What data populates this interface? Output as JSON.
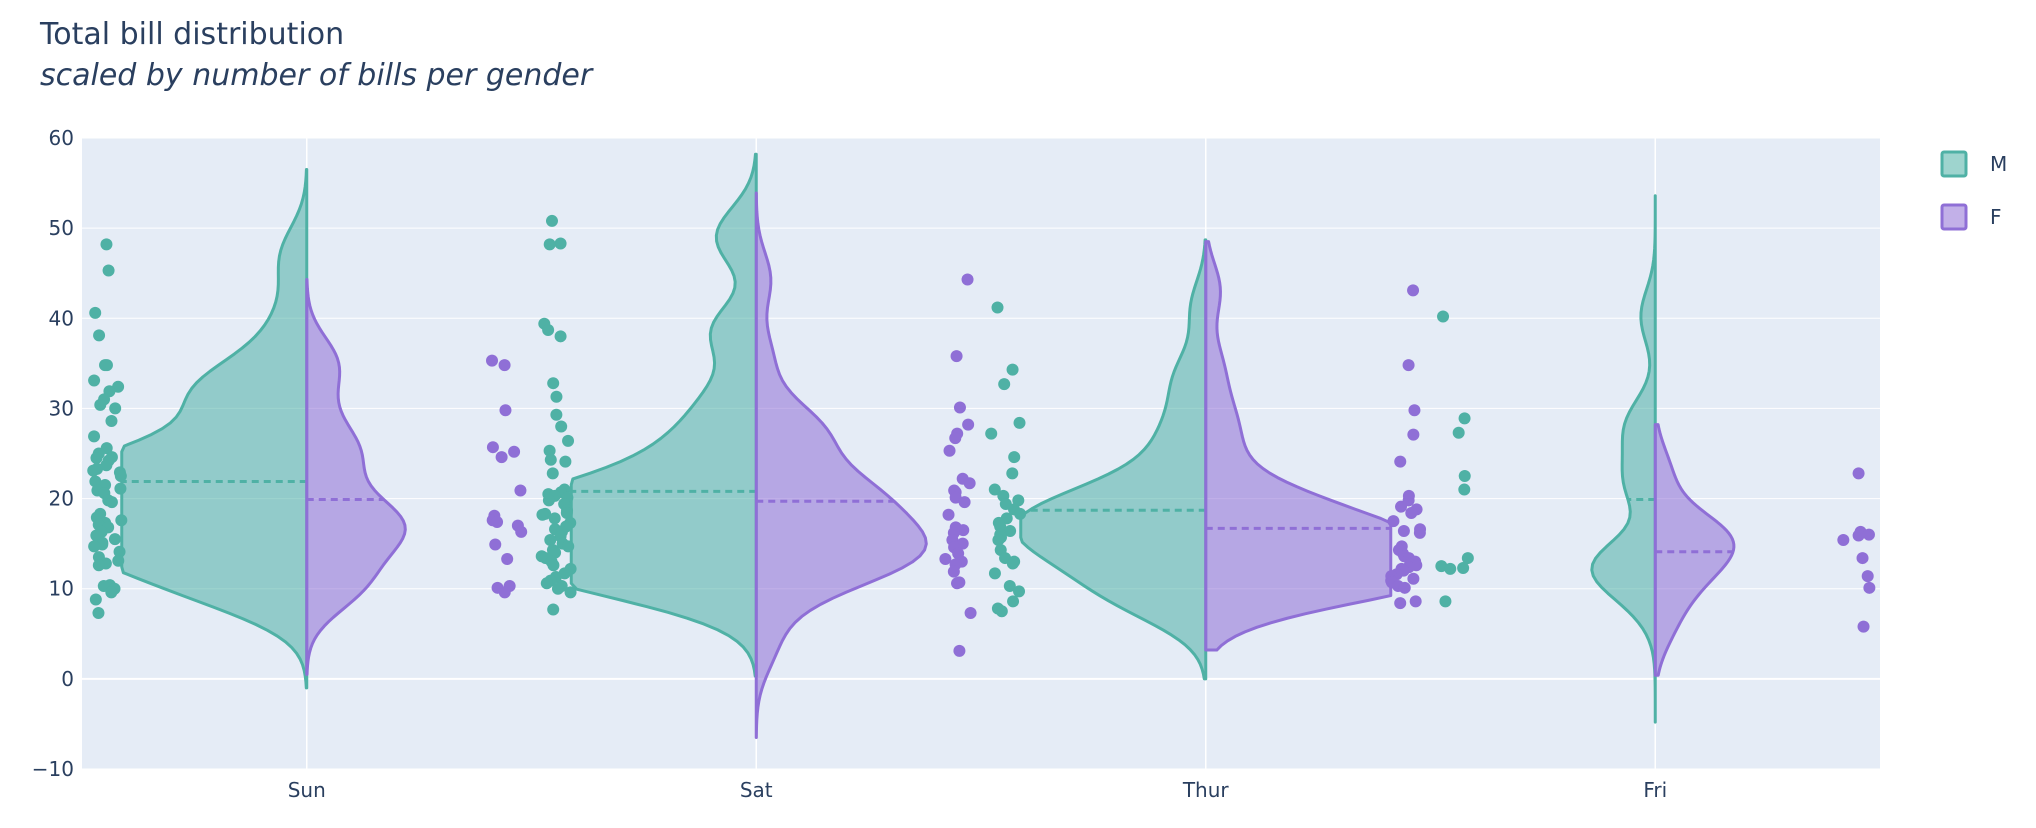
{
  "title": "Total bill distribution",
  "subtitle": "scaled by number of bills per gender",
  "colors": {
    "M": "#4fb1a5",
    "F": "#8f6fd6",
    "plot_bg": "#e5ecf6",
    "grid": "#ffffff",
    "text": "#2a3f5f"
  },
  "chart_data": {
    "type": "violin",
    "categories": [
      "Sun",
      "Sat",
      "Thur",
      "Fri"
    ],
    "ylim": [
      -10,
      60
    ],
    "yticks": [
      -10,
      0,
      10,
      20,
      30,
      40,
      50,
      60
    ],
    "grid": true,
    "legend_position": "top-right",
    "series": [
      {
        "name": "M",
        "side": "negative",
        "violins": [
          {
            "category": "Sun",
            "mean": 21.9,
            "range": [
              -1,
              56.5
            ],
            "points": [
              48.2,
              45.3,
              40.6,
              38.1,
              34.8,
              34.8,
              33.1,
              32.4,
              31.9,
              31.0,
              30.4,
              30.0,
              28.6,
              26.9,
              25.6,
              25.0,
              24.6,
              24.5,
              24.2,
              23.7,
              23.3,
              23.1,
              22.9,
              22.5,
              21.9,
              21.5,
              21.1,
              20.9,
              20.6,
              19.8,
              19.6,
              18.3,
              17.9,
              17.6,
              17.3,
              17.1,
              16.8,
              16.3,
              15.9,
              15.5,
              15.1,
              14.9,
              14.7,
              14.1,
              13.5,
              13.1,
              12.8,
              12.6,
              10.4,
              10.3,
              10.0,
              9.6,
              8.8,
              7.3
            ]
          },
          {
            "category": "Sat",
            "mean": 20.8,
            "range": [
              0.3,
              58.2
            ],
            "points": [
              50.8,
              48.3,
              48.2,
              39.4,
              38.7,
              38.0,
              32.8,
              31.3,
              29.3,
              28.0,
              26.4,
              25.3,
              24.3,
              24.1,
              22.8,
              21.0,
              20.7,
              20.5,
              20.3,
              20.1,
              19.8,
              19.4,
              18.7,
              18.4,
              18.3,
              18.2,
              17.8,
              17.3,
              16.9,
              16.6,
              16.3,
              15.8,
              15.4,
              15.0,
              14.7,
              14.3,
              14.0,
              13.6,
              13.4,
              13.0,
              12.6,
              12.2,
              11.7,
              11.3,
              10.9,
              10.6,
              10.3,
              10.0,
              9.6,
              7.7
            ]
          },
          {
            "category": "Thur",
            "mean": 18.7,
            "range": [
              0,
              48.7
            ],
            "points": [
              41.2,
              34.3,
              32.7,
              28.4,
              27.2,
              24.6,
              22.8,
              21.0,
              20.3,
              19.8,
              19.4,
              18.8,
              18.3,
              17.8,
              17.3,
              16.9,
              16.4,
              16.0,
              15.7,
              15.4,
              14.3,
              13.4,
              13.0,
              12.8,
              11.7,
              10.3,
              9.7,
              8.6,
              7.8,
              7.5
            ]
          },
          {
            "category": "Fri",
            "mean": 19.9,
            "range": [
              -4.8,
              53.6
            ],
            "points": [
              40.2,
              28.9,
              27.3,
              22.5,
              21.0,
              13.4,
              12.5,
              12.3,
              12.2,
              8.6
            ]
          }
        ]
      },
      {
        "name": "F",
        "side": "positive",
        "violins": [
          {
            "category": "Sun",
            "mean": 19.9,
            "range": [
              0.5,
              44.3
            ],
            "points": [
              35.3,
              34.8,
              29.8,
              25.7,
              25.2,
              24.6,
              20.9,
              18.1,
              17.6,
              17.4,
              17.0,
              16.3,
              14.9,
              13.3,
              10.3,
              10.1,
              9.6
            ]
          },
          {
            "category": "Sat",
            "mean": 19.7,
            "range": [
              -6.5,
              53.9
            ],
            "points": [
              44.3,
              35.8,
              30.1,
              28.2,
              27.2,
              26.7,
              25.3,
              22.2,
              21.7,
              20.9,
              20.7,
              20.1,
              19.6,
              18.2,
              16.8,
              16.5,
              16.2,
              15.4,
              15.0,
              14.6,
              13.9,
              13.3,
              13.0,
              12.7,
              11.9,
              10.7,
              10.6,
              7.3,
              3.1
            ]
          },
          {
            "category": "Thur",
            "mean": 16.7,
            "range": [
              3.2,
              48.5
            ],
            "points": [
              43.1,
              34.8,
              29.8,
              27.1,
              24.1,
              20.3,
              19.8,
              19.1,
              18.8,
              18.4,
              17.5,
              16.6,
              16.4,
              16.2,
              14.7,
              14.3,
              13.9,
              13.6,
              13.4,
              13.0,
              12.7,
              12.6,
              12.4,
              12.2,
              12.0,
              11.6,
              11.4,
              11.1,
              10.9,
              10.7,
              10.3,
              10.1,
              8.6,
              8.4
            ]
          },
          {
            "category": "Fri",
            "mean": 14.1,
            "range": [
              0.4,
              28.2
            ],
            "points": [
              22.8,
              16.3,
              16.0,
              15.9,
              15.4,
              13.4,
              11.4,
              10.1,
              5.8
            ]
          }
        ]
      }
    ]
  }
}
